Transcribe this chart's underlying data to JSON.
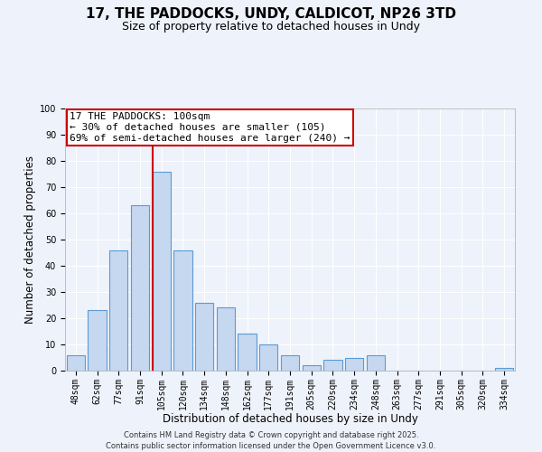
{
  "title": "17, THE PADDOCKS, UNDY, CALDICOT, NP26 3TD",
  "subtitle": "Size of property relative to detached houses in Undy",
  "xlabel": "Distribution of detached houses by size in Undy",
  "ylabel": "Number of detached properties",
  "bar_labels": [
    "48sqm",
    "62sqm",
    "77sqm",
    "91sqm",
    "105sqm",
    "120sqm",
    "134sqm",
    "148sqm",
    "162sqm",
    "177sqm",
    "191sqm",
    "205sqm",
    "220sqm",
    "234sqm",
    "248sqm",
    "263sqm",
    "277sqm",
    "291sqm",
    "305sqm",
    "320sqm",
    "334sqm"
  ],
  "bar_values": [
    6,
    23,
    46,
    63,
    76,
    46,
    26,
    24,
    14,
    10,
    6,
    2,
    4,
    5,
    6,
    0,
    0,
    0,
    0,
    0,
    1
  ],
  "bar_color": "#c5d8f0",
  "bar_edgecolor": "#5b9bd5",
  "annotation_line1": "17 THE PADDOCKS: 100sqm",
  "annotation_line2": "← 30% of detached houses are smaller (105)",
  "annotation_line3": "69% of semi-detached houses are larger (240) →",
  "annotation_box_edgecolor": "#cc0000",
  "vline_color": "#cc0000",
  "vline_x_index": 4,
  "ylim": [
    0,
    100
  ],
  "yticks": [
    0,
    10,
    20,
    30,
    40,
    50,
    60,
    70,
    80,
    90,
    100
  ],
  "background_color": "#eef2fb",
  "grid_color": "#ffffff",
  "footer_line1": "Contains HM Land Registry data © Crown copyright and database right 2025.",
  "footer_line2": "Contains public sector information licensed under the Open Government Licence v3.0.",
  "title_fontsize": 11,
  "subtitle_fontsize": 9,
  "axis_label_fontsize": 8.5,
  "tick_fontsize": 7,
  "annotation_fontsize": 8,
  "footer_fontsize": 6
}
